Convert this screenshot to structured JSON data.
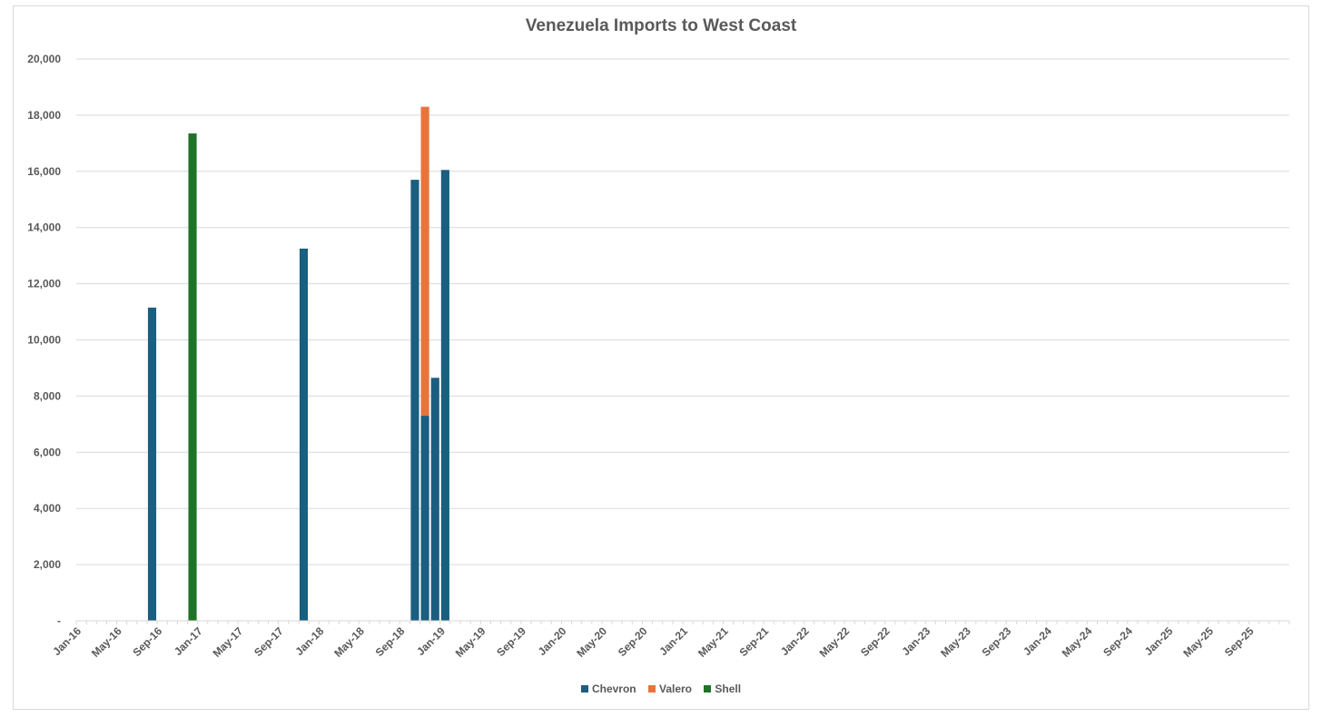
{
  "colors": {
    "Chevron": "#1a5e80",
    "Valero": "#e8743b",
    "Shell": "#1e7327",
    "grid": "#d9d9d9",
    "text": "#595959"
  },
  "chart_data": {
    "type": "bar",
    "stacked": true,
    "title": "Venezuela Imports to West Coast",
    "xlabel": "",
    "ylabel": "",
    "ylim": [
      0,
      20000
    ],
    "yticks": [
      0,
      2000,
      4000,
      6000,
      8000,
      10000,
      12000,
      14000,
      16000,
      18000,
      20000
    ],
    "ytick_labels": [
      "-",
      "2,000",
      "4,000",
      "6,000",
      "8,000",
      "10,000",
      "12,000",
      "14,000",
      "16,000",
      "18,000",
      "20,000"
    ],
    "x_start": "Jan-16",
    "x_end": "Dec-25",
    "x_tick_labels": [
      "Jan-16",
      "May-16",
      "Sep-16",
      "Jan-17",
      "May-17",
      "Sep-17",
      "Jan-18",
      "May-18",
      "Sep-18",
      "Jan-19",
      "May-19",
      "Sep-19",
      "Jan-20",
      "May-20",
      "Sep-20",
      "Jan-21",
      "May-21",
      "Sep-21",
      "Jan-22",
      "May-22",
      "Sep-22",
      "Jan-23",
      "May-23",
      "Sep-23",
      "Jan-24",
      "May-24",
      "Sep-24",
      "Jan-25",
      "May-25",
      "Sep-25"
    ],
    "legend_position": "bottom",
    "grid": true,
    "series": [
      {
        "name": "Chevron",
        "points": [
          {
            "x": "Aug-16",
            "y": 11150
          },
          {
            "x": "Nov-17",
            "y": 13250
          },
          {
            "x": "Oct-18",
            "y": 15700
          },
          {
            "x": "Nov-18",
            "y": 7300
          },
          {
            "x": "Dec-18",
            "y": 8650
          },
          {
            "x": "Jan-19",
            "y": 16050
          }
        ]
      },
      {
        "name": "Valero",
        "points": [
          {
            "x": "Nov-18",
            "y": 11000
          }
        ]
      },
      {
        "name": "Shell",
        "points": [
          {
            "x": "Dec-16",
            "y": 17350
          }
        ]
      }
    ]
  }
}
